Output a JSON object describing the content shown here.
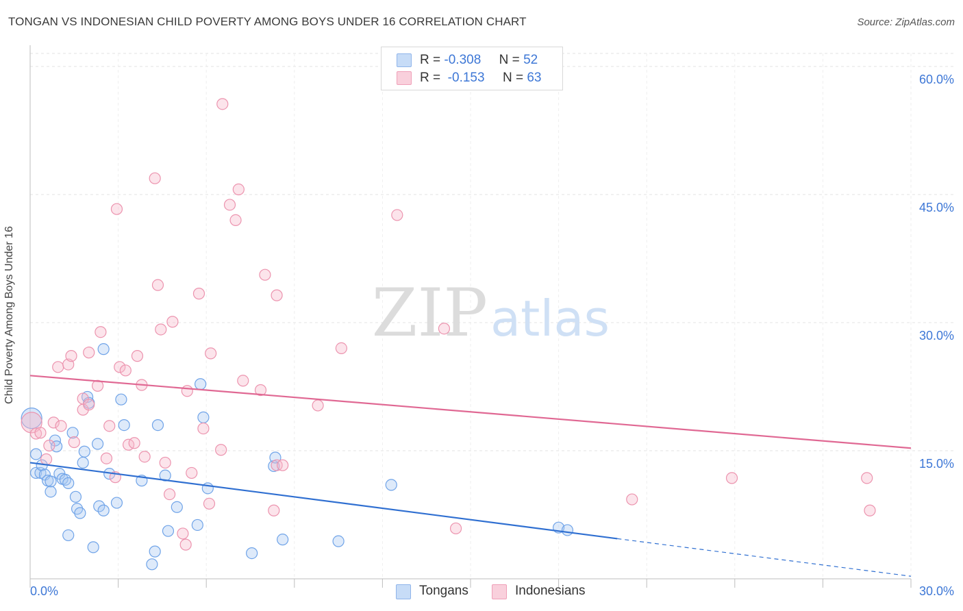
{
  "title": "TONGAN VS INDONESIAN CHILD POVERTY AMONG BOYS UNDER 16 CORRELATION CHART",
  "source": "Source: ZipAtlas.com",
  "watermark": {
    "zip": "ZIP",
    "atlas": "atlas"
  },
  "legend_top": [
    {
      "r_label": "R =",
      "r_value": "-0.308",
      "n_label": "N =",
      "n_value": "52",
      "color": "#a9c8f3"
    },
    {
      "r_label": "R =",
      "r_value": "-0.153",
      "n_label": "N =",
      "n_value": "63",
      "color": "#f6b8ca"
    }
  ],
  "legend_bottom": [
    {
      "label": "Tongans",
      "color": "#a9c8f3"
    },
    {
      "label": "Indonesians",
      "color": "#f6b8ca"
    }
  ],
  "chart_data": {
    "type": "scatter",
    "title": "TONGAN VS INDONESIAN CHILD POVERTY AMONG BOYS UNDER 16 CORRELATION CHART",
    "xlabel": "",
    "ylabel": "Child Poverty Among Boys Under 16",
    "xlim": [
      0,
      30
    ],
    "ylim": [
      0,
      60
    ],
    "x_tick_labels": [
      "0.0%",
      "30.0%"
    ],
    "y_ticks": [
      15,
      30,
      45,
      60
    ],
    "y_tick_labels": [
      "15.0%",
      "30.0%",
      "45.0%",
      "60.0%"
    ],
    "series": [
      {
        "name": "Tongans",
        "color": "#6fa3e8",
        "fill": "#a9c8f3",
        "trend": {
          "x0": 0,
          "y0": 13.6,
          "x1": 20,
          "y1": 4.7,
          "dash_to_x": 30,
          "dash_to_y": 0.3,
          "color": "#2f6fd1"
        },
        "points": [
          [
            0.05,
            18.8
          ],
          [
            0.2,
            14.6
          ],
          [
            0.2,
            12.4
          ],
          [
            0.35,
            12.4
          ],
          [
            0.4,
            13.3
          ],
          [
            0.5,
            12.2
          ],
          [
            0.6,
            11.5
          ],
          [
            0.7,
            11.4
          ],
          [
            0.7,
            10.2
          ],
          [
            0.85,
            16.2
          ],
          [
            0.9,
            15.5
          ],
          [
            1.0,
            12.3
          ],
          [
            1.1,
            11.7
          ],
          [
            1.2,
            11.6
          ],
          [
            1.3,
            11.2
          ],
          [
            1.3,
            5.1
          ],
          [
            1.45,
            17.1
          ],
          [
            1.55,
            9.6
          ],
          [
            1.6,
            8.2
          ],
          [
            1.7,
            7.7
          ],
          [
            1.8,
            13.6
          ],
          [
            1.85,
            14.9
          ],
          [
            1.95,
            21.3
          ],
          [
            2.0,
            20.6
          ],
          [
            2.15,
            3.7
          ],
          [
            2.3,
            15.8
          ],
          [
            2.35,
            8.5
          ],
          [
            2.5,
            8.0
          ],
          [
            2.5,
            26.9
          ],
          [
            2.7,
            12.3
          ],
          [
            2.95,
            8.9
          ],
          [
            3.1,
            21.0
          ],
          [
            3.2,
            18.0
          ],
          [
            3.8,
            11.5
          ],
          [
            4.15,
            1.7
          ],
          [
            4.25,
            3.2
          ],
          [
            4.35,
            18.0
          ],
          [
            4.6,
            12.1
          ],
          [
            4.7,
            5.6
          ],
          [
            5.0,
            8.4
          ],
          [
            5.7,
            6.3
          ],
          [
            5.8,
            22.8
          ],
          [
            5.9,
            18.9
          ],
          [
            6.05,
            10.6
          ],
          [
            7.55,
            3.0
          ],
          [
            8.3,
            13.2
          ],
          [
            8.35,
            14.2
          ],
          [
            8.6,
            4.6
          ],
          [
            10.5,
            4.4
          ],
          [
            12.3,
            11.0
          ],
          [
            18.0,
            6.0
          ],
          [
            18.3,
            5.7
          ]
        ]
      },
      {
        "name": "Indonesians",
        "color": "#ec93ae",
        "fill": "#f6b8ca",
        "trend": {
          "x0": 0,
          "y0": 23.8,
          "x1": 30,
          "y1": 15.3,
          "color": "#e06893"
        },
        "points": [
          [
            0.05,
            18.3
          ],
          [
            0.2,
            17.0
          ],
          [
            0.35,
            17.1
          ],
          [
            0.55,
            14.0
          ],
          [
            0.65,
            15.6
          ],
          [
            0.8,
            18.3
          ],
          [
            0.95,
            24.8
          ],
          [
            1.05,
            17.9
          ],
          [
            1.3,
            25.1
          ],
          [
            1.4,
            26.1
          ],
          [
            1.5,
            16.0
          ],
          [
            1.8,
            19.8
          ],
          [
            1.8,
            21.1
          ],
          [
            2.0,
            20.4
          ],
          [
            2.0,
            26.5
          ],
          [
            2.3,
            22.6
          ],
          [
            2.4,
            28.9
          ],
          [
            2.6,
            14.1
          ],
          [
            2.7,
            17.9
          ],
          [
            2.9,
            11.9
          ],
          [
            2.95,
            43.3
          ],
          [
            3.05,
            24.8
          ],
          [
            3.25,
            24.4
          ],
          [
            3.35,
            15.7
          ],
          [
            3.55,
            15.9
          ],
          [
            3.65,
            26.1
          ],
          [
            3.8,
            22.7
          ],
          [
            3.9,
            14.3
          ],
          [
            4.25,
            46.9
          ],
          [
            4.35,
            34.4
          ],
          [
            4.45,
            29.2
          ],
          [
            4.6,
            13.6
          ],
          [
            4.75,
            9.9
          ],
          [
            4.85,
            30.1
          ],
          [
            5.2,
            5.3
          ],
          [
            5.3,
            4.0
          ],
          [
            5.35,
            22.0
          ],
          [
            5.5,
            12.4
          ],
          [
            5.75,
            33.4
          ],
          [
            5.9,
            17.6
          ],
          [
            6.1,
            8.8
          ],
          [
            6.15,
            26.4
          ],
          [
            6.5,
            15.1
          ],
          [
            6.55,
            55.6
          ],
          [
            6.8,
            43.8
          ],
          [
            7.0,
            42.0
          ],
          [
            7.1,
            45.6
          ],
          [
            7.25,
            23.2
          ],
          [
            7.85,
            22.1
          ],
          [
            8.0,
            35.6
          ],
          [
            8.3,
            8.0
          ],
          [
            8.4,
            33.2
          ],
          [
            8.4,
            13.3
          ],
          [
            8.6,
            13.3
          ],
          [
            9.8,
            20.3
          ],
          [
            10.6,
            27.0
          ],
          [
            12.5,
            42.6
          ],
          [
            14.1,
            29.3
          ],
          [
            14.5,
            5.9
          ],
          [
            20.5,
            9.3
          ],
          [
            23.9,
            11.8
          ],
          [
            28.5,
            11.8
          ],
          [
            28.6,
            8.0
          ]
        ]
      }
    ]
  }
}
